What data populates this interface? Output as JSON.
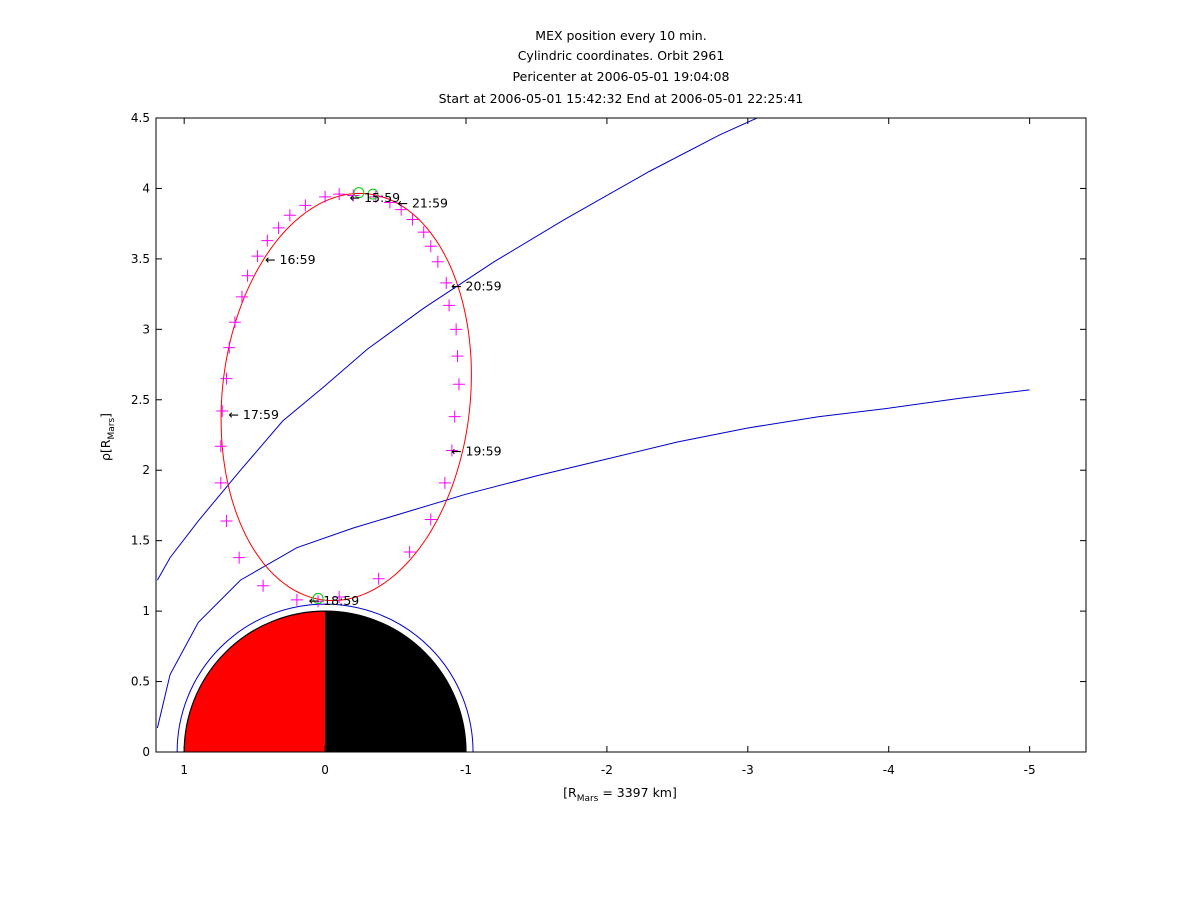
{
  "chart_data": {
    "type": "line",
    "title_lines": [
      "MEX position every 10 min.",
      "Cylindric coordinates. Orbit 2961",
      "Pericenter at 2006-05-01 19:04:08",
      "Start at 2006-05-01 15:42:32 End at 2006-05-01 22:25:41"
    ],
    "xlabel": {
      "main": "[R",
      "sub": "Mars",
      "rest": " = 3397 km]"
    },
    "ylabel": {
      "main": "ρ[R",
      "sub": "Mars",
      "rest": "]"
    },
    "xlim": [
      1.2,
      -5.4
    ],
    "ylim": [
      0,
      4.5
    ],
    "x_ticks": [
      1,
      0,
      -1,
      -2,
      -3,
      -4,
      -5
    ],
    "x_tick_labels": [
      "1",
      "0",
      "-1",
      "-2",
      "-3",
      "-4",
      "-5"
    ],
    "y_ticks": [
      0,
      0.5,
      1,
      1.5,
      2,
      2.5,
      3,
      3.5,
      4,
      4.5
    ],
    "y_tick_labels": [
      "0",
      "0.5",
      "1",
      "1.5",
      "2",
      "2.5",
      "3",
      "3.5",
      "4",
      "4.5"
    ],
    "colors": {
      "orbit": "#ff0000",
      "markers": "#ff00ff",
      "boundaries": "#0000cc",
      "pericenter_apocenter": "#00cc00",
      "mars_day": "#ff0000",
      "mars_night": "#000000"
    },
    "orbit": {
      "center": [
        -0.15,
        2.52
      ],
      "semi_axes": [
        0.88,
        1.45
      ],
      "tilt_deg": 6
    },
    "position_markers": [
      {
        "x": -0.1,
        "y": 1.1
      },
      {
        "x": -0.38,
        "y": 1.23
      },
      {
        "x": -0.6,
        "y": 1.42
      },
      {
        "x": -0.75,
        "y": 1.65
      },
      {
        "x": -0.85,
        "y": 1.91
      },
      {
        "x": -0.9,
        "y": 2.14
      },
      {
        "x": -0.92,
        "y": 2.38
      },
      {
        "x": -0.95,
        "y": 2.61
      },
      {
        "x": -0.94,
        "y": 2.81
      },
      {
        "x": -0.93,
        "y": 3.0
      },
      {
        "x": -0.88,
        "y": 3.17
      },
      {
        "x": -0.86,
        "y": 3.33
      },
      {
        "x": -0.8,
        "y": 3.48
      },
      {
        "x": -0.75,
        "y": 3.59
      },
      {
        "x": -0.7,
        "y": 3.69
      },
      {
        "x": -0.62,
        "y": 3.78
      },
      {
        "x": -0.54,
        "y": 3.85
      },
      {
        "x": -0.46,
        "y": 3.9
      },
      {
        "x": -0.36,
        "y": 3.94
      },
      {
        "x": -0.2,
        "y": 3.95
      },
      {
        "x": -0.1,
        "y": 3.96
      },
      {
        "x": 0.0,
        "y": 3.94
      },
      {
        "x": 0.14,
        "y": 3.88
      },
      {
        "x": 0.25,
        "y": 3.81
      },
      {
        "x": 0.33,
        "y": 3.72
      },
      {
        "x": 0.41,
        "y": 3.63
      },
      {
        "x": 0.48,
        "y": 3.52
      },
      {
        "x": 0.55,
        "y": 3.38
      },
      {
        "x": 0.59,
        "y": 3.23
      },
      {
        "x": 0.64,
        "y": 3.05
      },
      {
        "x": 0.68,
        "y": 2.87
      },
      {
        "x": 0.7,
        "y": 2.65
      },
      {
        "x": 0.73,
        "y": 2.42
      },
      {
        "x": 0.74,
        "y": 2.17
      },
      {
        "x": 0.74,
        "y": 1.91
      },
      {
        "x": 0.7,
        "y": 1.64
      },
      {
        "x": 0.61,
        "y": 1.38
      },
      {
        "x": 0.44,
        "y": 1.18
      },
      {
        "x": 0.2,
        "y": 1.08
      },
      {
        "x": 0.05,
        "y": 1.07
      }
    ],
    "time_labels": [
      {
        "text": "18:59",
        "x": 0.13,
        "y": 1.08
      },
      {
        "text": "19:59",
        "x": -0.88,
        "y": 2.14
      },
      {
        "text": "20:59",
        "x": -0.88,
        "y": 3.31
      },
      {
        "text": "21:59",
        "x": -0.5,
        "y": 3.9
      },
      {
        "text": "16:59",
        "x": 0.44,
        "y": 3.5
      },
      {
        "text": "17:59",
        "x": 0.7,
        "y": 2.4
      },
      {
        "text": "15:59",
        "x": -0.16,
        "y": 3.94
      }
    ],
    "pericenter_apocenter_markers": [
      {
        "x": 0.05,
        "y": 1.09
      },
      {
        "x": -0.24,
        "y": 3.97
      },
      {
        "x": -0.34,
        "y": 3.96
      }
    ],
    "boundaries": [
      {
        "name": "bow-shock",
        "points": [
          [
            1.19,
            1.22
          ],
          [
            1.1,
            1.38
          ],
          [
            0.9,
            1.64
          ],
          [
            0.6,
            2.0
          ],
          [
            0.3,
            2.35
          ],
          [
            0.0,
            2.6
          ],
          [
            -0.3,
            2.86
          ],
          [
            -0.7,
            3.15
          ],
          [
            -1.2,
            3.48
          ],
          [
            -1.7,
            3.78
          ],
          [
            -2.3,
            4.12
          ],
          [
            -2.8,
            4.38
          ],
          [
            -3.2,
            4.56
          ]
        ]
      },
      {
        "name": "magnetic-pileup-boundary",
        "points": [
          [
            1.19,
            0.17
          ],
          [
            1.1,
            0.55
          ],
          [
            0.9,
            0.92
          ],
          [
            0.6,
            1.22
          ],
          [
            0.2,
            1.45
          ],
          [
            -0.2,
            1.59
          ],
          [
            -0.6,
            1.71
          ],
          [
            -1.0,
            1.83
          ],
          [
            -1.5,
            1.96
          ],
          [
            -2.0,
            2.08
          ],
          [
            -2.5,
            2.2
          ],
          [
            -3.0,
            2.3
          ],
          [
            -3.5,
            2.38
          ],
          [
            -4.0,
            2.44
          ],
          [
            -4.5,
            2.51
          ],
          [
            -5.0,
            2.57
          ]
        ]
      }
    ],
    "mars": {
      "radius": 1.0,
      "outer_ring_radius": 1.05
    }
  }
}
